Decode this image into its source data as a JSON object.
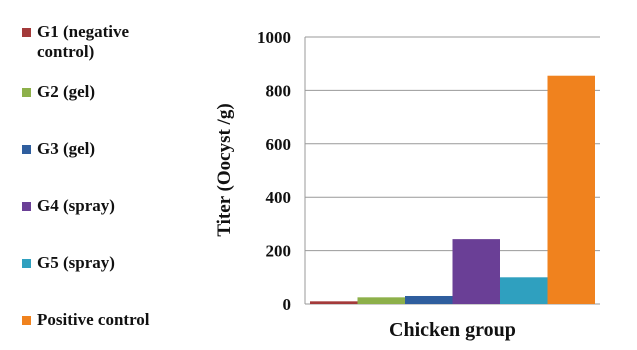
{
  "chart_data": {
    "type": "bar",
    "categories": [
      "Chicken group"
    ],
    "y_label": "Titer (Oocyst /g)",
    "series": [
      {
        "name": "G1 (negative control)",
        "color": "#a33a3a",
        "values": [
          10
        ]
      },
      {
        "name": "G2 (gel)",
        "color": "#8db04a",
        "values": [
          25
        ]
      },
      {
        "name": "G3 (gel)",
        "color": "#2f5e9e",
        "values": [
          30
        ]
      },
      {
        "name": "G4 (spray)",
        "color": "#6a3f96",
        "values": [
          243
        ]
      },
      {
        "name": "G5 (spray)",
        "color": "#2fa0bf",
        "values": [
          100
        ]
      },
      {
        "name": "Positive control",
        "color": "#f0821e",
        "values": [
          855
        ]
      }
    ],
    "ylim": [
      0,
      1000
    ],
    "yticks": [
      0,
      200,
      400,
      600,
      800,
      1000
    ],
    "grid": true,
    "legend": "left"
  }
}
